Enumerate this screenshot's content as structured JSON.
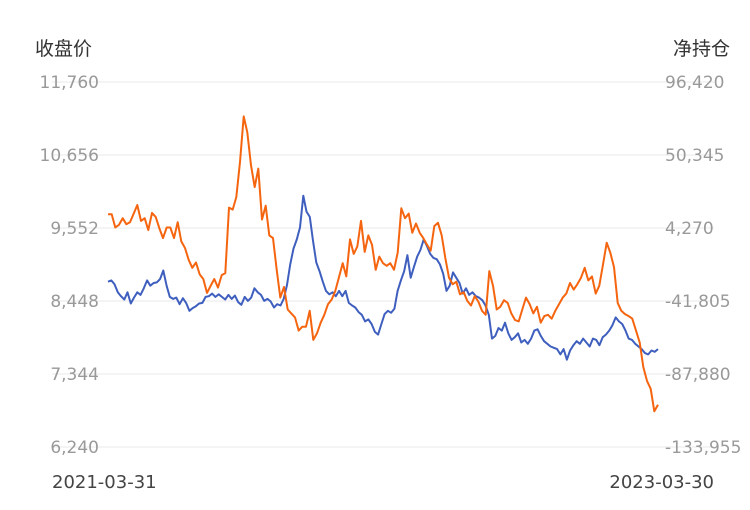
{
  "chart_data": {
    "type": "line",
    "title": "",
    "y_left_label": "收盘价",
    "y_right_label": "净持仓",
    "y_left_ticks": [
      "11,760",
      "10,656",
      "9,552",
      "8,448",
      "7,344",
      "6,240"
    ],
    "y_right_ticks": [
      "96,420",
      "50,345",
      "4,270",
      "-41,805",
      "-87,880",
      "-133,955"
    ],
    "y_left_range": [
      6240,
      11760
    ],
    "y_right_range": [
      -133955,
      96420
    ],
    "x_labels": [
      "2021-03-31",
      "2023-03-30"
    ],
    "grid": true,
    "legend": "none",
    "series": [
      {
        "axis": "left",
        "color": "#3f5fbf",
        "values": [
          8740,
          8760,
          8700,
          8580,
          8520,
          8470,
          8580,
          8410,
          8500,
          8580,
          8540,
          8640,
          8760,
          8680,
          8720,
          8730,
          8780,
          8910,
          8680,
          8510,
          8480,
          8500,
          8400,
          8490,
          8420,
          8300,
          8340,
          8370,
          8410,
          8420,
          8510,
          8520,
          8560,
          8510,
          8550,
          8510,
          8470,
          8540,
          8480,
          8530,
          8430,
          8390,
          8510,
          8450,
          8500,
          8640,
          8580,
          8540,
          8450,
          8480,
          8440,
          8350,
          8400,
          8380,
          8480,
          8690,
          9000,
          9240,
          9380,
          9560,
          10040,
          9800,
          9720,
          9360,
          9030,
          8900,
          8740,
          8600,
          8550,
          8580,
          8520,
          8600,
          8520,
          8600,
          8420,
          8380,
          8350,
          8280,
          8240,
          8140,
          8170,
          8100,
          7980,
          7940,
          8100,
          8250,
          8300,
          8270,
          8330,
          8600,
          8760,
          8900,
          9140,
          8800,
          8960,
          9120,
          9220,
          9380,
          9280,
          9160,
          9100,
          9080,
          9000,
          8860,
          8600,
          8680,
          8880,
          8800,
          8720,
          8560,
          8640,
          8540,
          8580,
          8520,
          8500,
          8460,
          8380,
          8240,
          7880,
          7920,
          8040,
          8000,
          8120,
          7960,
          7860,
          7900,
          7960,
          7820,
          7860,
          7800,
          7880,
          8000,
          8020,
          7920,
          7840,
          7800,
          7760,
          7740,
          7720,
          7640,
          7720,
          7560,
          7700,
          7780,
          7840,
          7800,
          7880,
          7820,
          7760,
          7880,
          7860,
          7780,
          7900,
          7940,
          8000,
          8080,
          8200,
          8140,
          8100,
          8000,
          7880,
          7860,
          7800,
          7760,
          7720,
          7660,
          7640,
          7700,
          7680,
          7720
        ]
      },
      {
        "axis": "left",
        "color": "#f5650f",
        "values": [
          9760,
          9760,
          9560,
          9600,
          9700,
          9610,
          9640,
          9770,
          9900,
          9660,
          9700,
          9520,
          9780,
          9720,
          9550,
          9400,
          9560,
          9560,
          9400,
          9640,
          9350,
          9250,
          9070,
          8950,
          9030,
          8850,
          8780,
          8570,
          8680,
          8780,
          8650,
          8840,
          8870,
          9860,
          9830,
          10020,
          10550,
          11240,
          11000,
          10500,
          10170,
          10450,
          9680,
          9890,
          9440,
          9400,
          8920,
          8500,
          8660,
          8320,
          8260,
          8200,
          8000,
          8060,
          8060,
          8300,
          7860,
          7960,
          8120,
          8240,
          8400,
          8470,
          8600,
          8810,
          9020,
          8820,
          9380,
          9160,
          9270,
          9660,
          9190,
          9440,
          9300,
          8920,
          9120,
          9020,
          8980,
          9020,
          8920,
          9180,
          9850,
          9700,
          9770,
          9480,
          9620,
          9480,
          9400,
          9300,
          9210,
          9580,
          9630,
          9440,
          9100,
          8800,
          8700,
          8740,
          8550,
          8580,
          8450,
          8380,
          8520,
          8440,
          8300,
          8240,
          8900,
          8680,
          8320,
          8360,
          8460,
          8420,
          8260,
          8160,
          8140,
          8320,
          8500,
          8400,
          8260,
          8360,
          8120,
          8220,
          8240,
          8180,
          8300,
          8400,
          8500,
          8560,
          8720,
          8620,
          8700,
          8800,
          8950,
          8760,
          8820,
          8560,
          8680,
          9000,
          9330,
          9180,
          8960,
          8420,
          8300,
          8250,
          8220,
          8180,
          8000,
          7820,
          7450,
          7240,
          7120,
          6780,
          6880
        ]
      }
    ]
  }
}
